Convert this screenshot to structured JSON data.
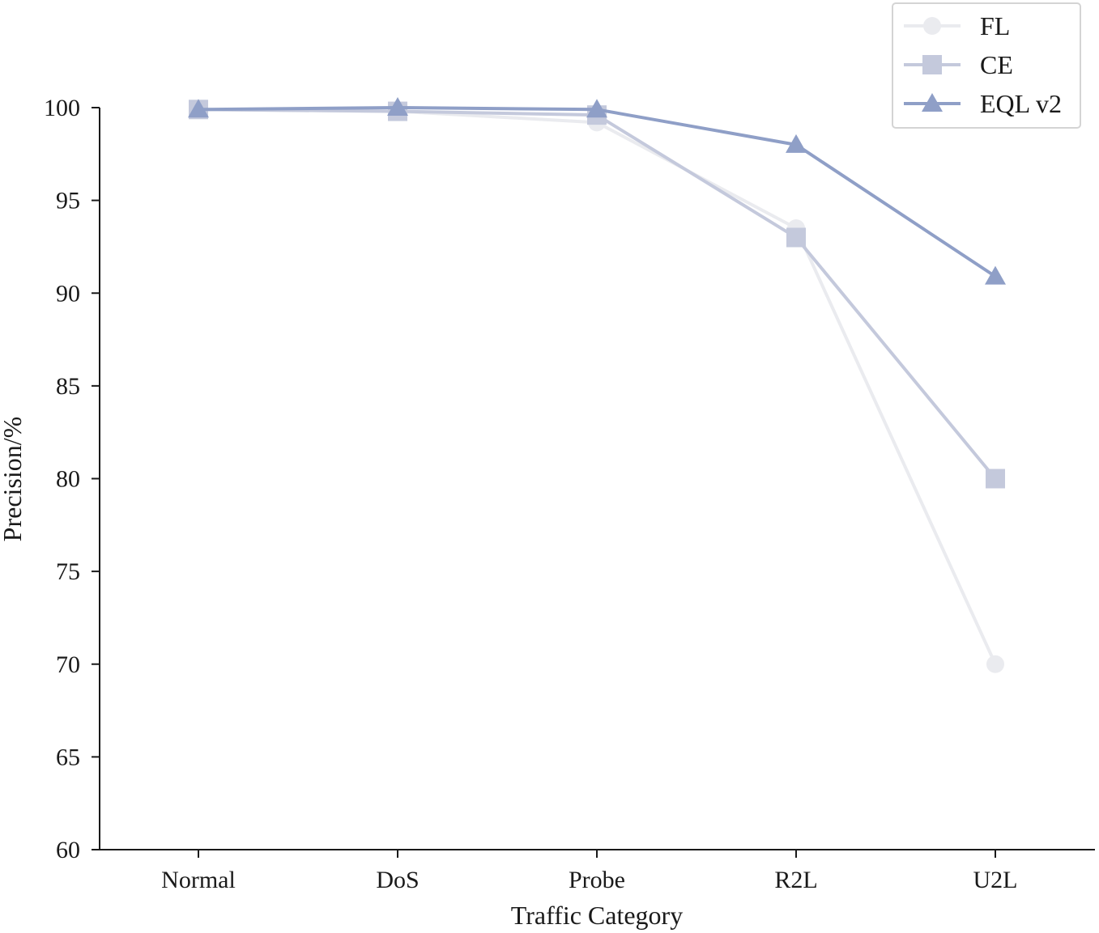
{
  "chart_data": {
    "type": "line",
    "xlabel": "Traffic Category",
    "ylabel": "Precision/%",
    "categories": [
      "Normal",
      "DoS",
      "Probe",
      "R2L",
      "U2L"
    ],
    "ylim": [
      60,
      100
    ],
    "yticks": [
      60,
      65,
      70,
      75,
      80,
      85,
      90,
      95,
      100
    ],
    "grid": false,
    "legend_position": "top-right",
    "series": [
      {
        "name": "FL",
        "marker": "circle",
        "color": "#eaebef",
        "values": [
          99.9,
          99.8,
          99.2,
          93.5,
          70.0
        ]
      },
      {
        "name": "CE",
        "marker": "square",
        "color": "#c4c9dc",
        "values": [
          99.9,
          99.8,
          99.6,
          93.0,
          80.0
        ]
      },
      {
        "name": "EQL v2",
        "marker": "triangle",
        "color": "#8f9fc7",
        "values": [
          99.9,
          100.0,
          99.9,
          98.0,
          90.9
        ]
      }
    ]
  }
}
